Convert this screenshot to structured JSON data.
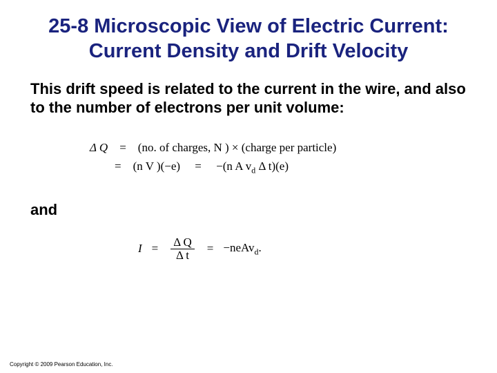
{
  "title": "25-8 Microscopic View of Electric Current: Current Density and Drift Velocity",
  "body": "This drift speed is related to the current in the wire, and also to the number of electrons per unit volume:",
  "eq1_line1_lhs": "Δ Q",
  "eq1_line1_eq": "=",
  "eq1_line1_rhs": "(no. of charges, N )  ×  (charge per particle)",
  "eq1_line2_eq": "=",
  "eq1_line2_a": "(n V )(−e)",
  "eq1_line2_eq2": "=",
  "eq1_line2_b_prefix": "−(n A v",
  "eq1_line2_b_sub": "d",
  "eq1_line2_b_suffix": " Δ t)(e)",
  "and": "and",
  "eq2_I": "I",
  "eq2_eq1": "=",
  "eq2_frac_num": "Δ Q",
  "eq2_frac_den": "Δ t",
  "eq2_eq2": "=",
  "eq2_rhs_prefix": "−neAv",
  "eq2_rhs_sub": "d",
  "eq2_rhs_suffix": ".",
  "copyright": "Copyright © 2009 Pearson Education, Inc.",
  "colors": {
    "title": "#1a237e",
    "text": "#000000",
    "background": "#ffffff"
  },
  "fonts": {
    "title_size": 29,
    "body_size": 22,
    "equation_size": 17,
    "copyright_size": 8
  }
}
